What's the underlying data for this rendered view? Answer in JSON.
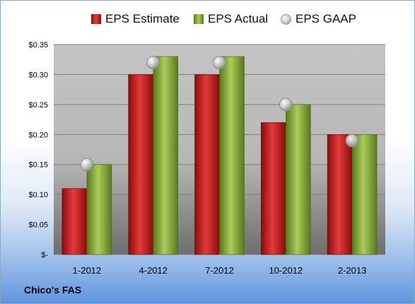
{
  "legend": {
    "estimate": "EPS Estimate",
    "actual": "EPS Actual",
    "gaap": "EPS GAAP"
  },
  "company": "Chico's FAS",
  "colors": {
    "estimate": "#c81a1a",
    "actual": "#8db33a",
    "gaap": "#c8c8c8",
    "plot_top": "#c4c4c4",
    "plot_bottom": "#6a6a6a"
  },
  "chart_data": {
    "type": "bar",
    "categories": [
      "1-2012",
      "4-2012",
      "7-2012",
      "10-2012",
      "2-2013"
    ],
    "series": [
      {
        "name": "EPS Estimate",
        "values": [
          0.11,
          0.3,
          0.3,
          0.22,
          0.2
        ]
      },
      {
        "name": "EPS Actual",
        "values": [
          0.15,
          0.33,
          0.33,
          0.25,
          0.2
        ]
      },
      {
        "name": "EPS GAAP",
        "values": [
          0.15,
          0.32,
          0.32,
          0.25,
          0.19
        ],
        "marker": "circle"
      }
    ],
    "yticks": [
      "$-",
      "$0.05",
      "$0.10",
      "$0.15",
      "$0.20",
      "$0.25",
      "$0.30",
      "$0.35"
    ],
    "ylim": [
      0,
      0.35
    ],
    "grid": true,
    "legend_position": "top"
  }
}
